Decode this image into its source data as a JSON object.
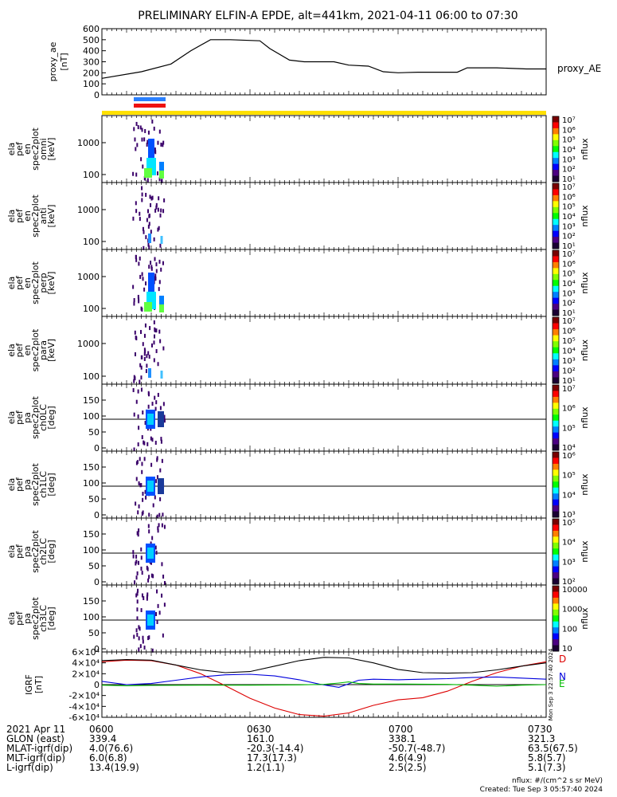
{
  "title": "PRELIMINARY ELFIN-A EPDE, alt=441km, 2021-04-11 06:00 to 07:30",
  "chart_data": [
    {
      "type": "line",
      "ylabel": "proxy_ae [nT]",
      "legend": "proxy_AE",
      "ylim": [
        0,
        600
      ],
      "yticks": [
        "0",
        "100",
        "200",
        "300",
        "400",
        "500",
        "600"
      ],
      "x_minutes": [
        0,
        8,
        14,
        18,
        22,
        26,
        32,
        34,
        38,
        41,
        44,
        47,
        50,
        54,
        57,
        60,
        64,
        68,
        72,
        74,
        80,
        86,
        90
      ],
      "values": [
        150,
        210,
        280,
        400,
        500,
        500,
        490,
        420,
        315,
        300,
        300,
        300,
        270,
        260,
        210,
        200,
        205,
        205,
        205,
        245,
        245,
        235,
        235
      ]
    },
    {
      "type": "heatmap",
      "name": "ela_pef_en_spec2plot_omni",
      "ylabel": "ela pef en spec2plot omni [keV]",
      "yticks": [
        "100",
        "1000"
      ],
      "colorbar_label": "nflux",
      "colorbar_ticks": [
        "10¹",
        "10²",
        "10³",
        "10⁴",
        "10⁵",
        "10⁶",
        "10⁷"
      ]
    },
    {
      "type": "heatmap",
      "name": "ela_pef_en_spec2plot_anti",
      "ylabel": "ela pef en spec2plot anti [keV]",
      "yticks": [
        "100",
        "1000"
      ],
      "colorbar_label": "nflux",
      "colorbar_ticks": [
        "10¹",
        "10²",
        "10³",
        "10⁴",
        "10⁵",
        "10⁶",
        "10⁷"
      ]
    },
    {
      "type": "heatmap",
      "name": "ela_pef_en_spec2plot_perp",
      "ylabel": "ela pef en spec2plot perp [keV]",
      "yticks": [
        "100",
        "1000"
      ],
      "colorbar_label": "nflux",
      "colorbar_ticks": [
        "10¹",
        "10²",
        "10³",
        "10⁴",
        "10⁵",
        "10⁶",
        "10⁷"
      ]
    },
    {
      "type": "heatmap",
      "name": "ela_pef_en_spec2plot_para",
      "ylabel": "ela pef en spec2plot para [keV]",
      "yticks": [
        "100",
        "1000"
      ],
      "colorbar_label": "nflux",
      "colorbar_ticks": [
        "10¹",
        "10²",
        "10³",
        "10⁴",
        "10⁵",
        "10⁶",
        "10⁷"
      ]
    },
    {
      "type": "heatmap",
      "name": "ela_pef_pa_spec2plot_ch0LC",
      "ylabel": "ela pef pa spec2plot ch0LC [deg]",
      "yticks": [
        "0",
        "50",
        "100",
        "150"
      ],
      "colorbar_label": "nflux",
      "colorbar_ticks": [
        "10⁴",
        "10⁵",
        "10⁶",
        "10⁷"
      ]
    },
    {
      "type": "heatmap",
      "name": "ela_pef_pa_spec2plot_ch1LC",
      "ylabel": "ela pef pa spec2plot ch1LC [deg]",
      "yticks": [
        "0",
        "50",
        "100",
        "150"
      ],
      "colorbar_label": "nflux",
      "colorbar_ticks": [
        "10³",
        "10⁴",
        "10⁵",
        "10⁶"
      ]
    },
    {
      "type": "heatmap",
      "name": "ela_pef_pa_spec2plot_ch2LC",
      "ylabel": "ela pef pa spec2plot ch2LC [deg]",
      "yticks": [
        "0",
        "50",
        "100",
        "150"
      ],
      "colorbar_label": "nflux",
      "colorbar_ticks": [
        "10²",
        "10³",
        "10⁴",
        "10⁵"
      ]
    },
    {
      "type": "heatmap",
      "name": "ela_pef_pa_spec2plot_ch3LC",
      "ylabel": "ela pef pa spec2plot ch3LC [deg]",
      "yticks": [
        "0",
        "50",
        "100",
        "150"
      ],
      "colorbar_label": "nflux",
      "colorbar_ticks": [
        "10",
        "100",
        "1000",
        "10000"
      ]
    },
    {
      "type": "line",
      "ylabel": "IGRF [nT]",
      "ylim": [
        -60000,
        60000
      ],
      "yticks": [
        "-6×10⁴",
        "-4×10⁴",
        "-2×10⁴",
        "0",
        "2×10⁴",
        "4×10⁴",
        "6×10⁴"
      ],
      "legend": [
        "D",
        "N",
        "E"
      ],
      "series": [
        {
          "name": "D",
          "color": "#dd0000",
          "x_minutes": [
            0,
            5,
            10,
            15,
            20,
            25,
            30,
            35,
            40,
            45,
            50,
            55,
            60,
            65,
            70,
            75,
            80,
            85,
            90
          ],
          "values": [
            42000,
            45000,
            44000,
            36000,
            20000,
            -2000,
            -25000,
            -43000,
            -55000,
            -58000,
            -52000,
            -38000,
            -28000,
            -24000,
            -12000,
            6000,
            22000,
            34000,
            42000
          ]
        },
        {
          "name": "N",
          "color": "#0000dd",
          "x_minutes": [
            0,
            5,
            10,
            15,
            20,
            25,
            30,
            35,
            40,
            44,
            48,
            52,
            55,
            60,
            65,
            70,
            75,
            80,
            85,
            90
          ],
          "values": [
            6000,
            0,
            2000,
            8000,
            14000,
            18000,
            19000,
            16000,
            9000,
            1000,
            -5000,
            8000,
            10000,
            9000,
            10000,
            11000,
            13000,
            14000,
            12000,
            10000
          ]
        },
        {
          "name": "E",
          "color": "#00bb00",
          "x_minutes": [
            0,
            5,
            10,
            20,
            30,
            40,
            45,
            48,
            50,
            52,
            55,
            60,
            70,
            75,
            80,
            85,
            90
          ],
          "values": [
            -1000,
            -2000,
            -1500,
            -1000,
            -1000,
            -500,
            500,
            3000,
            5000,
            2000,
            1000,
            1000,
            500,
            -1000,
            -3000,
            -1000,
            0
          ]
        },
        {
          "name": "",
          "color": "#000000",
          "x_minutes": [
            0,
            5,
            10,
            15,
            20,
            25,
            30,
            35,
            40,
            45,
            50,
            55,
            60,
            65,
            70,
            75,
            80,
            85,
            90
          ],
          "values": [
            44000,
            46000,
            45000,
            36000,
            27000,
            22000,
            24000,
            34000,
            44000,
            50000,
            49000,
            40000,
            28000,
            22000,
            21000,
            22000,
            27000,
            34000,
            40000
          ]
        }
      ]
    }
  ],
  "ephemeris": {
    "rows": [
      [
        "2021 Apr 11",
        "0600",
        "0630",
        "0700",
        "0730"
      ],
      [
        "GLON (east)",
        "339.4",
        "161.0",
        "338.1",
        "321.3"
      ],
      [
        "MLAT-igrf(dip)",
        "4.0(76.6)",
        "-20.3(-14.4)",
        "-50.7(-48.7)",
        "63.5(67.5)"
      ],
      [
        "MLT-igrf(dip)",
        "6.0(6.8)",
        "17.3(17.3)",
        "4.6(4.9)",
        "5.8(5.7)"
      ],
      [
        "L-igrf(dip)",
        "13.4(19.9)",
        "1.2(1.1)",
        "2.5(2.5)",
        "5.1(7.3)"
      ]
    ]
  },
  "credit": {
    "units": "nflux: #/(cm^2 s sr MeV)",
    "created": "Created: Tue Sep  3 05:57:40 2024",
    "side_stamp": "Mon Sep  3 22:57:40 2024"
  }
}
